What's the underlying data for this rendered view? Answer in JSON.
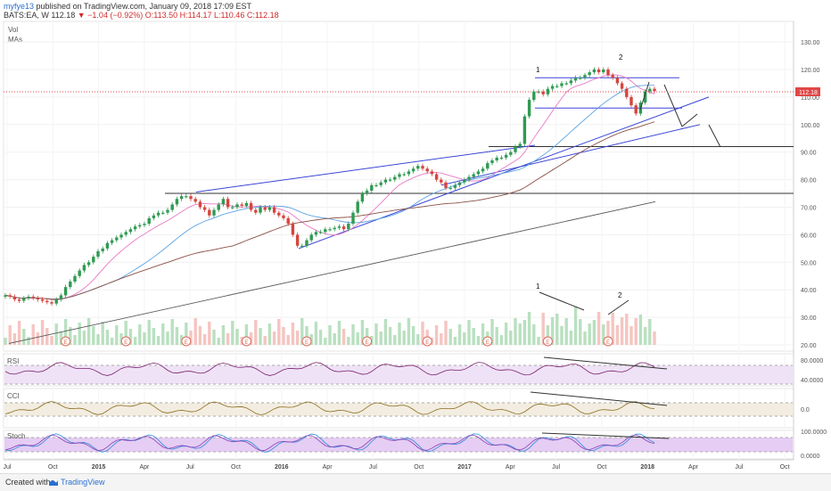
{
  "header": {
    "user": "myfye13",
    "published": "published on TradingView.com, January 09, 2018 17:09 EST",
    "symbol": "BATS:EA, W",
    "price": "112.18",
    "change": "−1.04 (−0.92%)",
    "ohlc": "O:113.50 H:114.17 L:110.46 C:112.18"
  },
  "footer": {
    "created": "Created with",
    "brand": "TradingView"
  },
  "chart_data": {
    "type": "candlestick",
    "main_labels": [
      "Vol",
      "MAs"
    ],
    "price_axis": {
      "min": 20,
      "max": 130,
      "ticks": [
        130,
        120,
        110,
        100,
        90,
        80,
        70,
        60,
        50,
        40,
        30,
        20
      ]
    },
    "last_price": 112.18,
    "x_labels": [
      "Jul",
      "Oct",
      "2015",
      "Apr",
      "Jul",
      "Oct",
      "2016",
      "Apr",
      "Jul",
      "Oct",
      "2017",
      "Apr",
      "Jul",
      "Oct",
      "2018",
      "Apr",
      "Jul",
      "Oct"
    ],
    "weekly_close": [
      38,
      37.5,
      36.5,
      36,
      37,
      37.5,
      37,
      36.5,
      36,
      35.5,
      35,
      36.5,
      38,
      41,
      43,
      45,
      47,
      49,
      50,
      52,
      54,
      55,
      57,
      58,
      59,
      60,
      61,
      62,
      63,
      63.5,
      64,
      66,
      67,
      68,
      68,
      69,
      71,
      73,
      74,
      74,
      73,
      72,
      70,
      69,
      67,
      69,
      71,
      73,
      70,
      70,
      71,
      70.5,
      71.5,
      69,
      68,
      70,
      69,
      70,
      68,
      67,
      66,
      64,
      60,
      56,
      56,
      58,
      60,
      61,
      61,
      62,
      62,
      62.5,
      63,
      62,
      64,
      68,
      72,
      75,
      76,
      78,
      78,
      79,
      80,
      80,
      81,
      82,
      82,
      83,
      84,
      85,
      84,
      83,
      82,
      80,
      79,
      77,
      77,
      78,
      79,
      80,
      81,
      82,
      83,
      84,
      86,
      87,
      88,
      88,
      89,
      90,
      92,
      93,
      103,
      109,
      112,
      112,
      111,
      113,
      114,
      114,
      115,
      115,
      116,
      117,
      117,
      118,
      119,
      120,
      119,
      120,
      118,
      117,
      115,
      113,
      110,
      107,
      104,
      108,
      112,
      113,
      112.18
    ],
    "annotations": [
      "1",
      "2",
      "1",
      "2"
    ],
    "indicators": [
      {
        "name": "RSI",
        "axis": [
          "80.0000",
          "40.0000"
        ]
      },
      {
        "name": "CCI",
        "axis": [
          "0.0"
        ]
      },
      {
        "name": "Stoch",
        "axis": [
          "100.0000",
          "0.0000"
        ]
      }
    ],
    "earnings_marker": "E",
    "colors": {
      "up": "#2f9a52",
      "down": "#d6453e",
      "ma_fast": "#e879c6",
      "ma_mid": "#5ea3e2",
      "ma_slow": "#8a4f44",
      "ma_long": "#5a5a5a",
      "trend": "#3a46d6",
      "level": "#333333",
      "last_price": "#e04747",
      "rsi_line": "#7a1f6b",
      "cci_line": "#8b6d1e",
      "stoch_k": "#2a8ad9",
      "stoch_d": "#8a3fb8"
    }
  }
}
